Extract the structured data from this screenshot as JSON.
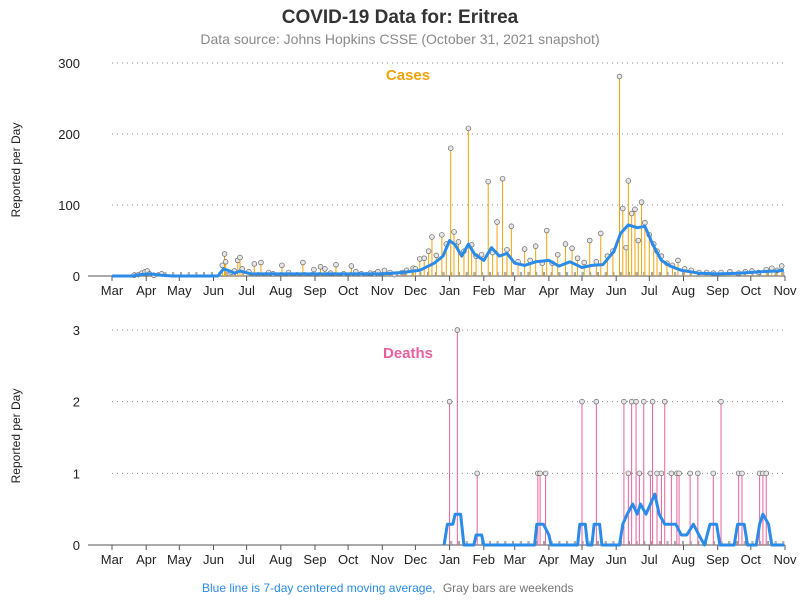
{
  "header": {
    "title": "COVID-19 Data for: Eritrea",
    "subtitle": "Data source: Johns Hopkins CSSE (October 31, 2021 snapshot)"
  },
  "footer": {
    "ma_note": "Blue line is 7-day centered moving average,",
    "weekend_note": "Gray bars are weekends"
  },
  "colors": {
    "cases": "#f0a30a",
    "deaths": "#e8609e",
    "moving_average": "#2a8be8",
    "weekend": "#8c8c8c",
    "grid": "#888888"
  },
  "chart_data": [
    {
      "type": "bar",
      "panel": "cases",
      "title": "Cases",
      "ylabel": "Reported per Day",
      "ylim": [
        0,
        300
      ],
      "yticks": [
        "0",
        "100",
        "200",
        "300"
      ],
      "x_start": "2020-03-01",
      "x_end": "2021-11-01",
      "xtick_labels": [
        "Mar",
        "Apr",
        "May",
        "Jun",
        "Jul",
        "Aug",
        "Sep",
        "Oct",
        "Nov",
        "Dec",
        "Jan",
        "Feb",
        "Mar",
        "Apr",
        "May",
        "Jun",
        "Jul",
        "Aug",
        "Sep",
        "Oct",
        "Nov"
      ],
      "grid": "horizontal dotted",
      "series_name": "Reported per Day",
      "points": [
        [
          "2020-03-21",
          1
        ],
        [
          "2020-03-25",
          2
        ],
        [
          "2020-03-28",
          4
        ],
        [
          "2020-03-31",
          6
        ],
        [
          "2020-04-02",
          7
        ],
        [
          "2020-04-04",
          3
        ],
        [
          "2020-04-08",
          1
        ],
        [
          "2020-04-15",
          3
        ],
        [
          "2020-06-09",
          15
        ],
        [
          "2020-06-11",
          31
        ],
        [
          "2020-06-12",
          20
        ],
        [
          "2020-06-17",
          5
        ],
        [
          "2020-06-20",
          7
        ],
        [
          "2020-06-23",
          22
        ],
        [
          "2020-06-25",
          26
        ],
        [
          "2020-06-27",
          10
        ],
        [
          "2020-07-03",
          6
        ],
        [
          "2020-07-08",
          17
        ],
        [
          "2020-07-14",
          19
        ],
        [
          "2020-07-21",
          5
        ],
        [
          "2020-07-25",
          3
        ],
        [
          "2020-08-02",
          15
        ],
        [
          "2020-08-08",
          5
        ],
        [
          "2020-08-21",
          19
        ],
        [
          "2020-08-31",
          9
        ],
        [
          "2020-09-06",
          13
        ],
        [
          "2020-09-10",
          10
        ],
        [
          "2020-09-15",
          4
        ],
        [
          "2020-09-20",
          16
        ],
        [
          "2020-09-27",
          3
        ],
        [
          "2020-10-04",
          14
        ],
        [
          "2020-10-08",
          6
        ],
        [
          "2020-10-13",
          3
        ],
        [
          "2020-10-21",
          4
        ],
        [
          "2020-10-25",
          3
        ],
        [
          "2020-10-28",
          6
        ],
        [
          "2020-11-03",
          8
        ],
        [
          "2020-11-08",
          5
        ],
        [
          "2020-11-12",
          2
        ],
        [
          "2020-11-19",
          5
        ],
        [
          "2020-11-23",
          8
        ],
        [
          "2020-11-29",
          11
        ],
        [
          "2020-12-01",
          10
        ],
        [
          "2020-12-05",
          24
        ],
        [
          "2020-12-09",
          25
        ],
        [
          "2020-12-13",
          35
        ],
        [
          "2020-12-16",
          55
        ],
        [
          "2020-12-20",
          29
        ],
        [
          "2020-12-25",
          58
        ],
        [
          "2020-12-29",
          45
        ],
        [
          "2021-01-02",
          180
        ],
        [
          "2021-01-05",
          62
        ],
        [
          "2021-01-09",
          48
        ],
        [
          "2021-01-14",
          35
        ],
        [
          "2021-01-18",
          208
        ],
        [
          "2021-01-21",
          44
        ],
        [
          "2021-01-25",
          28
        ],
        [
          "2021-01-30",
          30
        ],
        [
          "2021-02-05",
          133
        ],
        [
          "2021-02-09",
          33
        ],
        [
          "2021-02-13",
          76
        ],
        [
          "2021-02-18",
          137
        ],
        [
          "2021-02-22",
          37
        ],
        [
          "2021-02-26",
          70
        ],
        [
          "2021-03-04",
          20
        ],
        [
          "2021-03-10",
          38
        ],
        [
          "2021-03-15",
          22
        ],
        [
          "2021-03-20",
          42
        ],
        [
          "2021-03-26",
          18
        ],
        [
          "2021-03-30",
          64
        ],
        [
          "2021-04-04",
          18
        ],
        [
          "2021-04-09",
          30
        ],
        [
          "2021-04-16",
          45
        ],
        [
          "2021-04-22",
          39
        ],
        [
          "2021-04-27",
          25
        ],
        [
          "2021-05-03",
          19
        ],
        [
          "2021-05-08",
          50
        ],
        [
          "2021-05-14",
          20
        ],
        [
          "2021-05-18",
          60
        ],
        [
          "2021-05-24",
          28
        ],
        [
          "2021-05-29",
          35
        ],
        [
          "2021-06-04",
          281
        ],
        [
          "2021-06-07",
          95
        ],
        [
          "2021-06-10",
          40
        ],
        [
          "2021-06-12",
          134
        ],
        [
          "2021-06-15",
          88
        ],
        [
          "2021-06-18",
          94
        ],
        [
          "2021-06-21",
          50
        ],
        [
          "2021-06-24",
          104
        ],
        [
          "2021-06-27",
          75
        ],
        [
          "2021-07-01",
          58
        ],
        [
          "2021-07-05",
          45
        ],
        [
          "2021-07-08",
          35
        ],
        [
          "2021-07-12",
          28
        ],
        [
          "2021-07-17",
          18
        ],
        [
          "2021-07-22",
          15
        ],
        [
          "2021-07-27",
          22
        ],
        [
          "2021-08-02",
          10
        ],
        [
          "2021-08-08",
          8
        ],
        [
          "2021-08-15",
          5
        ],
        [
          "2021-08-22",
          5
        ],
        [
          "2021-08-28",
          4
        ],
        [
          "2021-09-04",
          5
        ],
        [
          "2021-09-12",
          6
        ],
        [
          "2021-09-20",
          4
        ],
        [
          "2021-09-26",
          6
        ],
        [
          "2021-10-02",
          7
        ],
        [
          "2021-10-08",
          5
        ],
        [
          "2021-10-15",
          9
        ],
        [
          "2021-10-20",
          11
        ],
        [
          "2021-10-25",
          8
        ],
        [
          "2021-10-29",
          14
        ]
      ],
      "moving_average": [
        [
          "2020-03-01",
          0
        ],
        [
          "2020-03-20",
          0
        ],
        [
          "2020-03-26",
          2
        ],
        [
          "2020-04-04",
          3
        ],
        [
          "2020-04-15",
          1
        ],
        [
          "2020-04-25",
          0
        ],
        [
          "2020-06-05",
          0
        ],
        [
          "2020-06-10",
          10
        ],
        [
          "2020-06-14",
          8
        ],
        [
          "2020-06-20",
          4
        ],
        [
          "2020-06-25",
          7
        ],
        [
          "2020-07-05",
          3
        ],
        [
          "2020-08-01",
          3
        ],
        [
          "2020-09-01",
          3
        ],
        [
          "2020-10-01",
          3
        ],
        [
          "2020-11-01",
          3
        ],
        [
          "2020-11-20",
          5
        ],
        [
          "2020-12-05",
          8
        ],
        [
          "2020-12-18",
          18
        ],
        [
          "2020-12-26",
          28
        ],
        [
          "2021-01-01",
          50
        ],
        [
          "2021-01-06",
          44
        ],
        [
          "2021-01-12",
          28
        ],
        [
          "2021-01-18",
          45
        ],
        [
          "2021-01-24",
          30
        ],
        [
          "2021-02-01",
          22
        ],
        [
          "2021-02-08",
          40
        ],
        [
          "2021-02-15",
          28
        ],
        [
          "2021-02-22",
          32
        ],
        [
          "2021-03-01",
          18
        ],
        [
          "2021-03-10",
          15
        ],
        [
          "2021-03-20",
          20
        ],
        [
          "2021-04-01",
          22
        ],
        [
          "2021-04-10",
          14
        ],
        [
          "2021-04-20",
          20
        ],
        [
          "2021-05-01",
          12
        ],
        [
          "2021-05-10",
          15
        ],
        [
          "2021-05-20",
          16
        ],
        [
          "2021-05-30",
          35
        ],
        [
          "2021-06-05",
          60
        ],
        [
          "2021-06-12",
          72
        ],
        [
          "2021-06-20",
          68
        ],
        [
          "2021-06-27",
          70
        ],
        [
          "2021-07-04",
          45
        ],
        [
          "2021-07-12",
          22
        ],
        [
          "2021-07-20",
          14
        ],
        [
          "2021-07-30",
          8
        ],
        [
          "2021-08-15",
          4
        ],
        [
          "2021-09-01",
          3
        ],
        [
          "2021-09-20",
          4
        ],
        [
          "2021-10-10",
          6
        ],
        [
          "2021-10-25",
          7
        ],
        [
          "2021-10-31",
          8
        ]
      ]
    },
    {
      "type": "bar",
      "panel": "deaths",
      "title": "Deaths",
      "ylabel": "Reported per Day",
      "ylim": [
        0,
        3
      ],
      "yticks": [
        "0",
        "1",
        "2",
        "3"
      ],
      "x_start": "2020-03-01",
      "x_end": "2021-11-01",
      "xtick_labels": [
        "Mar",
        "Apr",
        "May",
        "Jun",
        "Jul",
        "Aug",
        "Sep",
        "Oct",
        "Nov",
        "Dec",
        "Jan",
        "Feb",
        "Mar",
        "Apr",
        "May",
        "Jun",
        "Jul",
        "Aug",
        "Sep",
        "Oct",
        "Nov"
      ],
      "grid": "horizontal dotted",
      "series_name": "Reported per Day",
      "points": [
        [
          "2021-01-01",
          2
        ],
        [
          "2021-01-08",
          3
        ],
        [
          "2021-01-26",
          1
        ],
        [
          "2021-03-22",
          1
        ],
        [
          "2021-03-24",
          1
        ],
        [
          "2021-03-29",
          1
        ],
        [
          "2021-05-01",
          2
        ],
        [
          "2021-05-14",
          2
        ],
        [
          "2021-06-08",
          2
        ],
        [
          "2021-06-12",
          1
        ],
        [
          "2021-06-15",
          2
        ],
        [
          "2021-06-19",
          2
        ],
        [
          "2021-06-22",
          1
        ],
        [
          "2021-06-26",
          2
        ],
        [
          "2021-07-02",
          1
        ],
        [
          "2021-07-04",
          2
        ],
        [
          "2021-07-08",
          1
        ],
        [
          "2021-07-12",
          1
        ],
        [
          "2021-07-15",
          2
        ],
        [
          "2021-07-21",
          1
        ],
        [
          "2021-07-26",
          1
        ],
        [
          "2021-07-28",
          1
        ],
        [
          "2021-08-07",
          1
        ],
        [
          "2021-08-14",
          1
        ],
        [
          "2021-08-28",
          1
        ],
        [
          "2021-09-04",
          2
        ],
        [
          "2021-09-20",
          1
        ],
        [
          "2021-09-23",
          1
        ],
        [
          "2021-10-09",
          1
        ],
        [
          "2021-10-12",
          1
        ],
        [
          "2021-10-15",
          1
        ]
      ],
      "moving_average": [
        [
          "2020-12-27",
          0
        ],
        [
          "2020-12-30",
          0.29
        ],
        [
          "2021-01-04",
          0.29
        ],
        [
          "2021-01-06",
          0.43
        ],
        [
          "2021-01-11",
          0.43
        ],
        [
          "2021-01-14",
          0
        ],
        [
          "2021-01-23",
          0
        ],
        [
          "2021-01-25",
          0.14
        ],
        [
          "2021-01-30",
          0.14
        ],
        [
          "2021-02-01",
          0
        ],
        [
          "2021-03-19",
          0
        ],
        [
          "2021-03-21",
          0.29
        ],
        [
          "2021-03-27",
          0.29
        ],
        [
          "2021-04-01",
          0.14
        ],
        [
          "2021-04-03",
          0
        ],
        [
          "2021-04-27",
          0
        ],
        [
          "2021-04-29",
          0.29
        ],
        [
          "2021-05-04",
          0.29
        ],
        [
          "2021-05-06",
          0
        ],
        [
          "2021-05-10",
          0
        ],
        [
          "2021-05-12",
          0.29
        ],
        [
          "2021-05-17",
          0.29
        ],
        [
          "2021-05-19",
          0
        ],
        [
          "2021-06-04",
          0
        ],
        [
          "2021-06-07",
          0.29
        ],
        [
          "2021-06-11",
          0.43
        ],
        [
          "2021-06-16",
          0.57
        ],
        [
          "2021-06-20",
          0.43
        ],
        [
          "2021-06-23",
          0.57
        ],
        [
          "2021-06-28",
          0.43
        ],
        [
          "2021-07-02",
          0.57
        ],
        [
          "2021-07-06",
          0.71
        ],
        [
          "2021-07-10",
          0.43
        ],
        [
          "2021-07-15",
          0.29
        ],
        [
          "2021-07-20",
          0.29
        ],
        [
          "2021-07-25",
          0.29
        ],
        [
          "2021-07-30",
          0.14
        ],
        [
          "2021-08-04",
          0.14
        ],
        [
          "2021-08-10",
          0.29
        ],
        [
          "2021-08-15",
          0.14
        ],
        [
          "2021-08-20",
          0
        ],
        [
          "2021-08-25",
          0.29
        ],
        [
          "2021-08-31",
          0.29
        ],
        [
          "2021-09-03",
          0
        ],
        [
          "2021-09-16",
          0
        ],
        [
          "2021-09-19",
          0.29
        ],
        [
          "2021-09-25",
          0.29
        ],
        [
          "2021-09-28",
          0
        ],
        [
          "2021-10-06",
          0
        ],
        [
          "2021-10-09",
          0.29
        ],
        [
          "2021-10-12",
          0.43
        ],
        [
          "2021-10-17",
          0.29
        ],
        [
          "2021-10-20",
          0
        ],
        [
          "2021-10-31",
          0
        ]
      ]
    }
  ]
}
